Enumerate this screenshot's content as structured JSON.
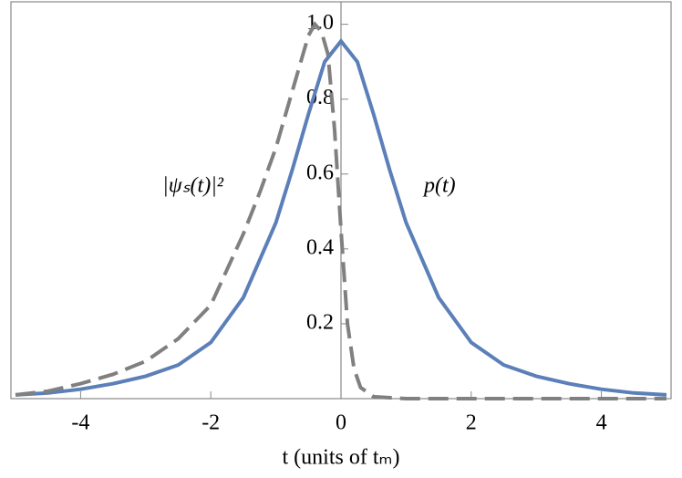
{
  "chart_data": {
    "type": "line",
    "xlabel": "t (units of tₘ)",
    "xlim": [
      -5,
      5
    ],
    "ylim": [
      0,
      1.06
    ],
    "xticks": [
      -4,
      -2,
      0,
      2,
      4
    ],
    "yticks": [
      0.2,
      0.4,
      0.6,
      0.8,
      {
        "value": 1.0,
        "label": "1.0"
      }
    ],
    "series": [
      {
        "name": "p(t)",
        "color": "#5b7fb8",
        "dashed": false,
        "x": [
          -5,
          -4.5,
          -4,
          -3.5,
          -3,
          -2.5,
          -2,
          -1.5,
          -1,
          -0.75,
          -0.5,
          -0.25,
          0,
          0.25,
          0.5,
          0.75,
          1,
          1.5,
          2,
          2.5,
          3,
          3.5,
          4,
          4.5,
          5
        ],
        "values": [
          0.01,
          0.015,
          0.025,
          0.04,
          0.06,
          0.09,
          0.15,
          0.27,
          0.47,
          0.61,
          0.76,
          0.9,
          0.955,
          0.9,
          0.76,
          0.61,
          0.47,
          0.27,
          0.15,
          0.09,
          0.06,
          0.04,
          0.025,
          0.015,
          0.01
        ]
      },
      {
        "name": "|ψₛ(t)|²",
        "color": "#808080",
        "dashed": true,
        "x": [
          -5,
          -4.5,
          -4,
          -3.5,
          -3,
          -2.5,
          -2,
          -1.5,
          -1.25,
          -1,
          -0.75,
          -0.5,
          -0.4,
          -0.3,
          -0.2,
          -0.1,
          0,
          0.1,
          0.2,
          0.3,
          0.5,
          1,
          2,
          3,
          4,
          5
        ],
        "values": [
          0.01,
          0.02,
          0.04,
          0.065,
          0.1,
          0.16,
          0.25,
          0.44,
          0.55,
          0.67,
          0.82,
          0.97,
          1.0,
          0.98,
          0.92,
          0.72,
          0.45,
          0.2,
          0.08,
          0.03,
          0.005,
          0,
          0,
          0,
          0,
          0
        ]
      }
    ]
  }
}
